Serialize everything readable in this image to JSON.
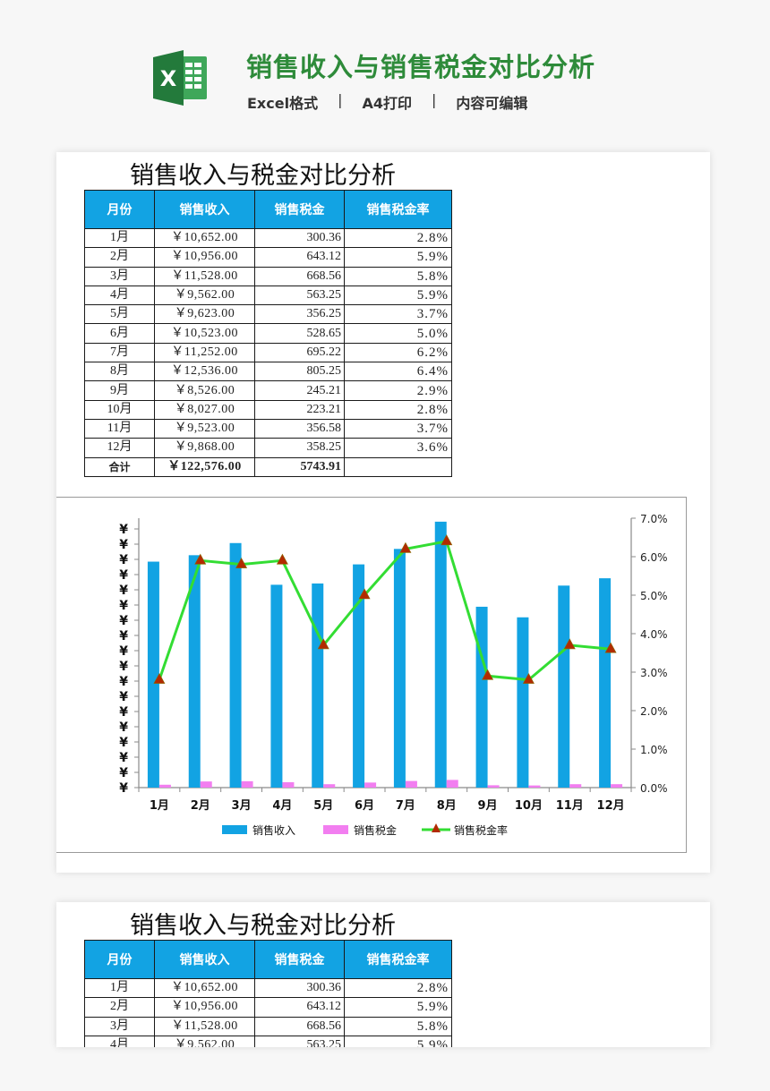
{
  "banner": {
    "icon": "excel-icon",
    "icon_letter": "X",
    "title": "销售收入与销售税金对比分析",
    "tags": [
      "Excel格式",
      "A4打印",
      "内容可编辑"
    ],
    "separator": "|",
    "title_color": "#2e8b3a"
  },
  "sheet": {
    "title": "销售收入与税金对比分析",
    "columns": [
      "月份",
      "销售收入",
      "销售税金",
      "销售税金率"
    ],
    "header_color": "#12a3e3",
    "rows": [
      {
        "month": "1月",
        "revenue": "￥10,652.00",
        "tax": "300.36",
        "rate": "2.8%"
      },
      {
        "month": "2月",
        "revenue": "￥10,956.00",
        "tax": "643.12",
        "rate": "5.9%"
      },
      {
        "month": "3月",
        "revenue": "￥11,528.00",
        "tax": "668.56",
        "rate": "5.8%"
      },
      {
        "month": "4月",
        "revenue": "￥9,562.00",
        "tax": "563.25",
        "rate": "5.9%"
      },
      {
        "month": "5月",
        "revenue": "￥9,623.00",
        "tax": "356.25",
        "rate": "3.7%"
      },
      {
        "month": "6月",
        "revenue": "￥10,523.00",
        "tax": "528.65",
        "rate": "5.0%"
      },
      {
        "month": "7月",
        "revenue": "￥11,252.00",
        "tax": "695.22",
        "rate": "6.2%"
      },
      {
        "month": "8月",
        "revenue": "￥12,536.00",
        "tax": "805.25",
        "rate": "6.4%"
      },
      {
        "month": "9月",
        "revenue": "￥8,526.00",
        "tax": "245.21",
        "rate": "2.9%"
      },
      {
        "month": "10月",
        "revenue": "￥8,027.00",
        "tax": "223.21",
        "rate": "2.8%"
      },
      {
        "month": "11月",
        "revenue": "￥9,523.00",
        "tax": "356.58",
        "rate": "3.7%"
      },
      {
        "month": "12月",
        "revenue": "￥9,868.00",
        "tax": "358.25",
        "rate": "3.6%"
      }
    ],
    "total": {
      "label": "合计",
      "revenue": "￥122,576.00",
      "tax": "5743.91",
      "rate": ""
    }
  },
  "sheet_preview": {
    "title": "销售收入与税金对比分析",
    "columns": [
      "月份",
      "销售收入",
      "销售税金",
      "销售税金率"
    ],
    "rows": [
      {
        "month": "1月",
        "revenue": "￥10,652.00",
        "tax": "300.36",
        "rate": "2.8%"
      },
      {
        "month": "2月",
        "revenue": "￥10,956.00",
        "tax": "643.12",
        "rate": "5.9%"
      },
      {
        "month": "3月",
        "revenue": "￥11,528.00",
        "tax": "668.56",
        "rate": "5.8%"
      },
      {
        "month": "4月",
        "revenue": "￥9,562.00",
        "tax": "563.25",
        "rate": "5.9%"
      }
    ]
  },
  "chart_data": {
    "type": "bar",
    "title": "",
    "categories": [
      "1月",
      "2月",
      "3月",
      "4月",
      "5月",
      "6月",
      "7月",
      "8月",
      "9月",
      "10月",
      "11月",
      "12月"
    ],
    "series": [
      {
        "name": "销售收入",
        "kind": "bar",
        "axis": "left",
        "color": "#12a3e3",
        "values": [
          10652,
          10956,
          11528,
          9562,
          9623,
          10523,
          11252,
          12536,
          8526,
          8027,
          9523,
          9868
        ]
      },
      {
        "name": "销售税金",
        "kind": "bar",
        "axis": "left",
        "color": "#f27ef0",
        "values": [
          300.36,
          643.12,
          668.56,
          563.25,
          356.25,
          528.65,
          695.22,
          805.25,
          245.21,
          223.21,
          356.58,
          358.25
        ]
      },
      {
        "name": "销售税金率",
        "kind": "line",
        "axis": "right",
        "color": "#33dd33",
        "marker": "triangle",
        "marker_color": "#b22a00",
        "values": [
          2.8,
          5.9,
          5.8,
          5.9,
          3.7,
          5.0,
          6.2,
          6.4,
          2.9,
          2.8,
          3.7,
          3.6
        ]
      }
    ],
    "y_left": {
      "tick_label": "¥",
      "tick_count": 18
    },
    "y_right": {
      "ticks": [
        "0.0%",
        "1.0%",
        "2.0%",
        "3.0%",
        "4.0%",
        "5.0%",
        "6.0%",
        "7.0%"
      ],
      "range": [
        0,
        7
      ]
    },
    "legend": {
      "position": "bottom",
      "entries": [
        "销售收入",
        "销售税金",
        "销售税金率"
      ]
    },
    "grid": false
  }
}
